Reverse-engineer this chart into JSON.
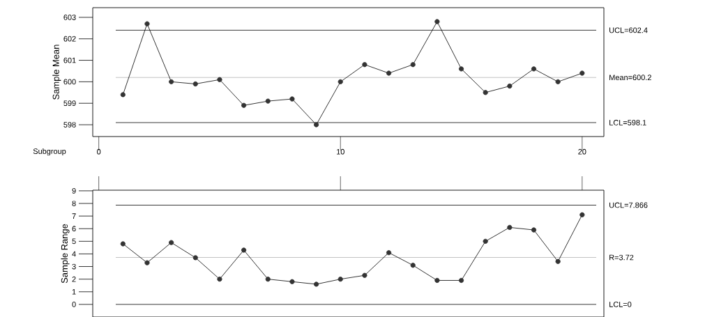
{
  "chart_data": [
    {
      "type": "line",
      "ylabel": "Sample Mean",
      "xlabel": "Subgroup",
      "marker": "circle",
      "x": [
        1,
        2,
        3,
        4,
        5,
        6,
        7,
        8,
        9,
        10,
        11,
        12,
        13,
        14,
        15,
        16,
        17,
        18,
        19,
        20
      ],
      "values": [
        599.4,
        602.7,
        600.0,
        599.9,
        600.1,
        598.9,
        599.1,
        599.2,
        598.0,
        600.0,
        600.8,
        600.4,
        600.8,
        602.8,
        600.6,
        599.5,
        599.8,
        600.6,
        600.0,
        600.4
      ],
      "color": "#333333",
      "xlim": [
        -0.25,
        20.9
      ],
      "xticks": [
        0,
        10,
        20
      ],
      "ylim": [
        597.45,
        603.45
      ],
      "yticks": [
        598,
        599,
        600,
        601,
        602,
        603
      ],
      "ref_lines": [
        {
          "axis": "y",
          "value": 602.4,
          "label": "UCL=602.4",
          "color": "#222222"
        },
        {
          "axis": "y",
          "value": 600.2,
          "label": "Mean=600.2",
          "color": "#bbbbbb"
        },
        {
          "axis": "y",
          "value": 598.1,
          "label": "LCL=598.1",
          "color": "#222222"
        }
      ]
    },
    {
      "type": "line",
      "ylabel": "Sample Range",
      "marker": "circle",
      "tick_labels": "y",
      "x": [
        1,
        2,
        3,
        4,
        5,
        6,
        7,
        8,
        9,
        10,
        11,
        12,
        13,
        14,
        15,
        16,
        17,
        18,
        19,
        20
      ],
      "values": [
        4.8,
        3.3,
        4.9,
        3.7,
        2.0,
        4.3,
        2.0,
        1.8,
        1.6,
        2.0,
        2.3,
        4.1,
        3.1,
        1.9,
        1.9,
        5.0,
        6.1,
        5.9,
        3.4,
        7.1
      ],
      "color": "#333333",
      "xlim": [
        -0.25,
        20.9
      ],
      "xticks": [
        0,
        10,
        20
      ],
      "ylim": [
        -1.0,
        9.05
      ],
      "yticks": [
        0,
        1,
        2,
        3,
        4,
        5,
        6,
        7,
        8,
        9
      ],
      "ref_lines": [
        {
          "axis": "y",
          "value": 7.866,
          "label": "UCL=7.866",
          "color": "#222222"
        },
        {
          "axis": "y",
          "value": 3.72,
          "label": "R=3.72",
          "color": "#bbbbbb"
        },
        {
          "axis": "y",
          "value": 0,
          "label": "LCL=0",
          "color": "#222222"
        }
      ]
    }
  ]
}
